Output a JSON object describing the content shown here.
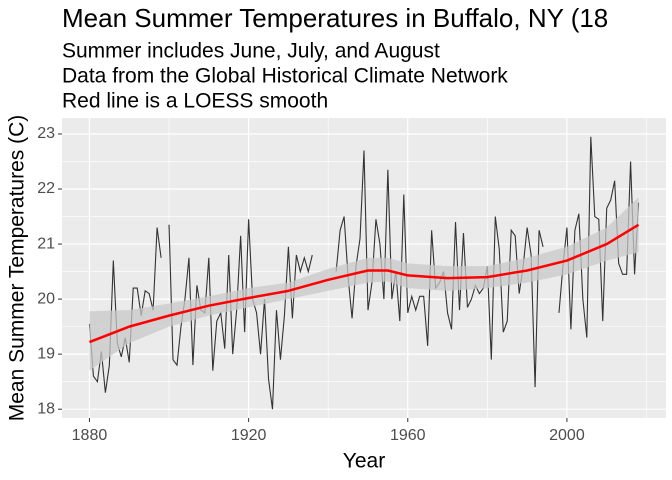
{
  "chart_data": {
    "type": "line",
    "title": "Mean Summer Temperatures in Buffalo, NY (18",
    "subtitle": [
      "Summer includes June, July, and August",
      "Data from the Global Historical Climate Network",
      "Red line is a LOESS smooth"
    ],
    "x_label": "Year",
    "y_label": "Mean Summer Temperatures (C)",
    "x": [
      1880,
      1881,
      1882,
      1883,
      1884,
      1885,
      1886,
      1887,
      1888,
      1889,
      1890,
      1891,
      1892,
      1893,
      1894,
      1895,
      1896,
      1897,
      1898,
      1899,
      1900,
      1901,
      1902,
      1903,
      1904,
      1905,
      1906,
      1907,
      1908,
      1909,
      1910,
      1911,
      1912,
      1913,
      1914,
      1915,
      1916,
      1917,
      1918,
      1919,
      1920,
      1921,
      1922,
      1923,
      1924,
      1925,
      1926,
      1927,
      1928,
      1929,
      1930,
      1931,
      1932,
      1933,
      1934,
      1935,
      1936,
      1937,
      1938,
      1939,
      1940,
      1941,
      1942,
      1943,
      1944,
      1945,
      1946,
      1947,
      1948,
      1949,
      1950,
      1951,
      1952,
      1953,
      1954,
      1955,
      1956,
      1957,
      1958,
      1959,
      1960,
      1961,
      1962,
      1963,
      1964,
      1965,
      1966,
      1967,
      1968,
      1969,
      1970,
      1971,
      1972,
      1973,
      1974,
      1975,
      1976,
      1977,
      1978,
      1979,
      1980,
      1981,
      1982,
      1983,
      1984,
      1985,
      1986,
      1987,
      1988,
      1989,
      1990,
      1991,
      1992,
      1993,
      1994,
      1995,
      1996,
      1997,
      1998,
      1999,
      2000,
      2001,
      2002,
      2003,
      2004,
      2005,
      2006,
      2007,
      2008,
      2009,
      2010,
      2011,
      2012,
      2013,
      2014,
      2015,
      2016,
      2017,
      2018
    ],
    "series": [
      {
        "color": "#333333",
        "values": [
          19.55,
          18.6,
          18.5,
          19.05,
          18.3,
          18.8,
          20.7,
          19.2,
          18.95,
          19.3,
          18.85,
          20.2,
          20.2,
          19.7,
          20.15,
          20.1,
          19.8,
          21.3,
          20.75,
          null,
          21.35,
          18.9,
          18.8,
          19.5,
          20.0,
          20.75,
          18.8,
          20.25,
          19.8,
          19.75,
          20.75,
          18.7,
          19.6,
          19.75,
          19.1,
          20.8,
          19.0,
          19.8,
          21.15,
          19.4,
          21.45,
          20.0,
          19.75,
          19.0,
          20.0,
          18.55,
          18.0,
          19.8,
          18.9,
          19.7,
          20.95,
          19.65,
          20.8,
          20.5,
          20.75,
          20.5,
          20.8,
          null,
          null,
          null,
          null,
          null,
          20.5,
          21.25,
          21.5,
          20.4,
          19.65,
          20.6,
          21.1,
          22.7,
          19.8,
          20.3,
          21.45,
          21.0,
          20.0,
          22.35,
          20.0,
          20.5,
          19.6,
          21.9,
          19.75,
          20.05,
          19.8,
          20.05,
          20.05,
          19.15,
          21.25,
          20.2,
          20.3,
          20.5,
          19.75,
          19.45,
          21.4,
          19.8,
          21.2,
          19.85,
          20.0,
          20.25,
          20.1,
          20.2,
          20.6,
          18.9,
          21.5,
          20.9,
          19.4,
          19.6,
          21.25,
          21.15,
          20.1,
          20.6,
          21.3,
          20.8,
          18.4,
          21.25,
          20.95,
          null,
          null,
          null,
          19.75,
          20.6,
          21.3,
          19.45,
          21.25,
          21.55,
          20.0,
          19.3,
          22.95,
          21.5,
          21.45,
          19.6,
          21.65,
          21.8,
          22.15,
          20.65,
          20.45,
          20.45,
          22.5,
          20.45,
          21.75
        ]
      }
    ],
    "smooth": {
      "color": "#ff0000",
      "band_color": "#c8c8c8",
      "x": [
        1880,
        1890,
        1900,
        1910,
        1920,
        1930,
        1940,
        1950,
        1955,
        1960,
        1970,
        1980,
        1990,
        2000,
        2010,
        2018
      ],
      "values": [
        19.22,
        19.5,
        19.7,
        19.88,
        20.02,
        20.15,
        20.35,
        20.52,
        20.52,
        20.43,
        20.38,
        20.4,
        20.52,
        20.7,
        21.0,
        21.35
      ],
      "lower": [
        18.7,
        19.2,
        19.5,
        19.7,
        19.85,
        20.0,
        20.15,
        20.3,
        20.32,
        20.2,
        20.15,
        20.2,
        20.3,
        20.45,
        20.7,
        20.85
      ],
      "upper": [
        19.78,
        19.8,
        19.92,
        20.05,
        20.2,
        20.3,
        20.55,
        20.75,
        20.75,
        20.65,
        20.6,
        20.6,
        20.75,
        20.95,
        21.3,
        21.85
      ]
    },
    "xlim": [
      1873.1,
      2024.9
    ],
    "ylim": [
      17.84,
      23.29
    ],
    "xticks": [
      1880,
      1920,
      1960,
      2000
    ],
    "yticks": [
      18,
      19,
      20,
      21,
      22,
      23
    ],
    "xminor": [
      1900,
      1940,
      1980,
      2020
    ],
    "yminor": [
      18.5,
      19.5,
      20.5,
      21.5,
      22.5
    ],
    "grid": true
  }
}
